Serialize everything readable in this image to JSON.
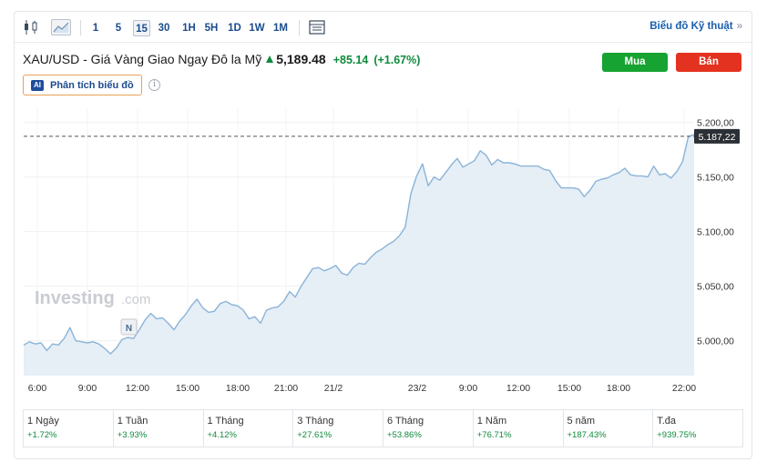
{
  "toolbar": {
    "icons": [
      "candlestick-icon",
      "area-chart-icon",
      "calendar-table-icon"
    ],
    "intervals": [
      "1",
      "5",
      "15",
      "30",
      "1H",
      "5H",
      "1D",
      "1W",
      "1M"
    ],
    "active_interval": "15",
    "tech_chart_link": "Biểu đồ Kỹ thuật",
    "tech_chart_chevron": "»"
  },
  "header": {
    "instrument": "XAU/USD - Giá Vàng Giao Ngay Đô la Mỹ",
    "price": "5,189.48",
    "change": "+85.14",
    "change_pct": "(+1.67%)",
    "buy_label": "Mua",
    "sell_label": "Bán",
    "ai_badge": "AI",
    "ai_button_label": "Phân tích biểu đồ",
    "info_glyph": "i"
  },
  "colors": {
    "up": "#0e8a3c",
    "line": "#8ab4d8",
    "fill": "#e6eef6",
    "buy": "#16a331",
    "sell": "#e3321f",
    "price_tag": "#2b2f36"
  },
  "chart_data": {
    "type": "area",
    "watermark_main": "Investing",
    "watermark_suffix": ".com",
    "news_marker": "N",
    "current_price_label": "5.187,22",
    "current_price_value": 5187.22,
    "y_ticks": [
      {
        "value": 5200,
        "label": "5.200,00"
      },
      {
        "value": 5150,
        "label": "5.150,00"
      },
      {
        "value": 5100,
        "label": "5.100,00"
      },
      {
        "value": 5050,
        "label": "5.050,00"
      },
      {
        "value": 5000,
        "label": "5.000,00"
      }
    ],
    "x_ticks": [
      "6:00",
      "9:00",
      "12:00",
      "15:00",
      "18:00",
      "21:00",
      "21/2",
      "23/2",
      "9:00",
      "12:00",
      "15:00",
      "18:00",
      "22:00"
    ],
    "ylim": [
      4968,
      5213
    ],
    "grid": true,
    "values": [
      4996,
      4999,
      4997,
      4998,
      4991,
      4997,
      4996,
      5002,
      5012,
      5000,
      4999,
      4998,
      4999,
      4997,
      4993,
      4988,
      4993,
      5001,
      5003,
      5002,
      5010,
      5019,
      5025,
      5020,
      5021,
      5016,
      5010,
      5018,
      5024,
      5032,
      5038,
      5030,
      5026,
      5027,
      5034,
      5036,
      5033,
      5032,
      5028,
      5020,
      5022,
      5016,
      5028,
      5030,
      5031,
      5036,
      5045,
      5040,
      5050,
      5058,
      5066,
      5067,
      5064,
      5066,
      5069,
      5062,
      5060,
      5067,
      5071,
      5070,
      5076,
      5081,
      5084,
      5088,
      5091,
      5096,
      5104,
      5135,
      5151,
      5162,
      5142,
      5150,
      5147,
      5154,
      5161,
      5167,
      5159,
      5162,
      5165,
      5174,
      5170,
      5161,
      5166,
      5163,
      5163,
      5162,
      5160,
      5160,
      5160,
      5160,
      5157,
      5156,
      5147,
      5140,
      5140,
      5140,
      5139,
      5132,
      5138,
      5146,
      5148,
      5149,
      5152,
      5154,
      5158,
      5152,
      5151,
      5151,
      5150,
      5160,
      5152,
      5153,
      5149,
      5155,
      5164,
      5187,
      5189
    ]
  },
  "performance": [
    {
      "label": "1 Ngày",
      "value": "+1.72%"
    },
    {
      "label": "1 Tuần",
      "value": "+3.93%"
    },
    {
      "label": "1 Tháng",
      "value": "+4.12%"
    },
    {
      "label": "3 Tháng",
      "value": "+27.61%"
    },
    {
      "label": "6 Tháng",
      "value": "+53.86%"
    },
    {
      "label": "1 Năm",
      "value": "+76.71%"
    },
    {
      "label": "5 năm",
      "value": "+187.43%"
    },
    {
      "label": "T.đa",
      "value": "+939.75%"
    }
  ]
}
